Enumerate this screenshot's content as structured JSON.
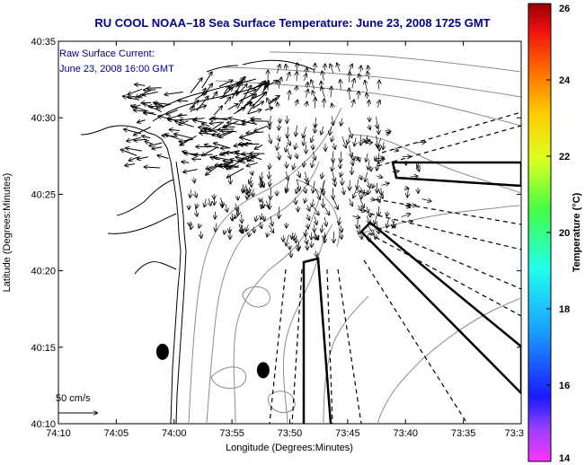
{
  "title": "RU COOL  NOAA–18  Sea Surface Temperature:  June 23, 2008 1725 GMT",
  "annotation": {
    "line1": "Raw Surface Current:",
    "line2": "June 23, 2008 16:00 GMT"
  },
  "scale": {
    "label": "50 cm/s",
    "value_cm_s": 50
  },
  "x_axis": {
    "label": "Longitude (Degrees:Minutes)",
    "ticks": [
      {
        "label": "74:10",
        "minutes": 0
      },
      {
        "label": "74:05",
        "minutes": 5
      },
      {
        "label": "74:00",
        "minutes": 10
      },
      {
        "label": "73:55",
        "minutes": 15
      },
      {
        "label": "73:50",
        "minutes": 20
      },
      {
        "label": "73:45",
        "minutes": 25
      },
      {
        "label": "73:40",
        "minutes": 30
      },
      {
        "label": "73:35",
        "minutes": 35
      },
      {
        "label": "73:3",
        "minutes": 40
      }
    ]
  },
  "y_axis": {
    "label": "Latitude (Degrees:Minutes)",
    "ticks": [
      {
        "label": "40:35",
        "minutes": 35
      },
      {
        "label": "40:30",
        "minutes": 30
      },
      {
        "label": "40:25",
        "minutes": 25
      },
      {
        "label": "40:20",
        "minutes": 20
      },
      {
        "label": "40:15",
        "minutes": 15
      },
      {
        "label": "40:10",
        "minutes": 10
      }
    ]
  },
  "colorbar": {
    "label": "Temperature (°C)",
    "min": 14,
    "max": 26,
    "ticks": [
      "26",
      "24",
      "22",
      "20",
      "18",
      "16",
      "14"
    ]
  },
  "markers": [
    {
      "name": "site-marker-a",
      "lon_min": 9.0,
      "lat_min": 14.7
    },
    {
      "name": "site-marker-b",
      "lon_min": 17.7,
      "lat_min": 13.5
    }
  ]
}
